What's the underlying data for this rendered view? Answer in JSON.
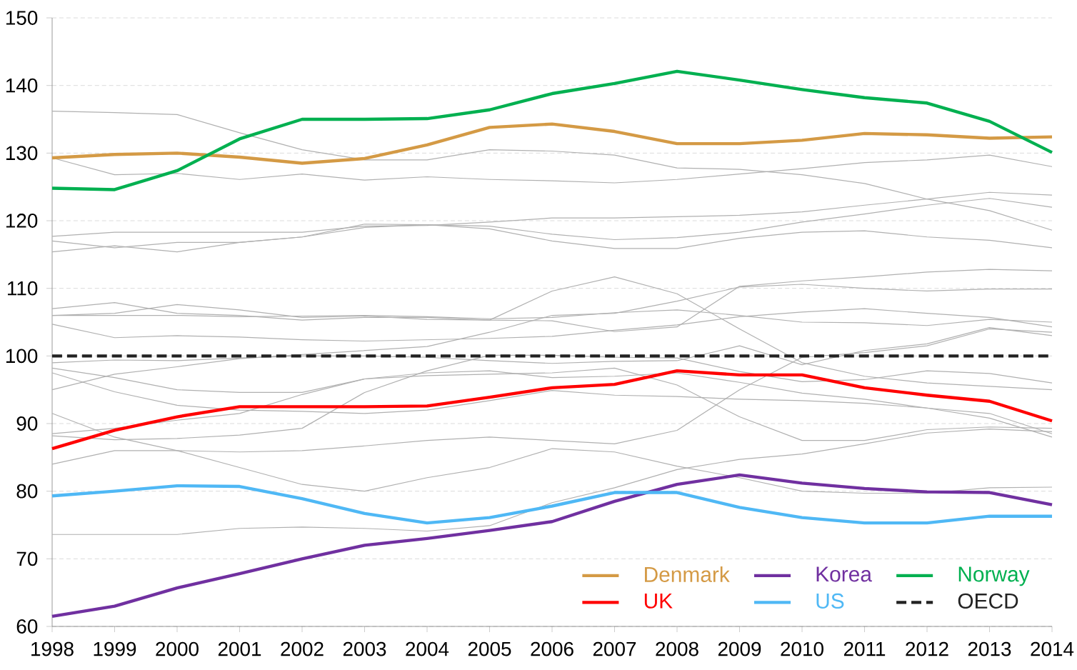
{
  "chart_data": {
    "type": "line",
    "x": [
      1998,
      1999,
      2000,
      2001,
      2002,
      2003,
      2004,
      2005,
      2006,
      2007,
      2008,
      2009,
      2010,
      2011,
      2012,
      2013,
      2014
    ],
    "xlim": [
      1998,
      2014
    ],
    "xticks": [
      1998,
      1999,
      2000,
      2001,
      2002,
      2003,
      2004,
      2005,
      2006,
      2007,
      2008,
      2009,
      2010,
      2011,
      2012,
      2013,
      2014
    ],
    "ylim": [
      60,
      150
    ],
    "yticks": [
      60,
      70,
      80,
      90,
      100,
      110,
      120,
      130,
      140,
      150
    ],
    "grid": "y",
    "legend": "bottom right",
    "marker": "none",
    "series": [
      {
        "color": "#b0b0b0",
        "values": [
          136.2,
          136.0,
          135.7,
          133.0,
          130.5,
          129.0,
          129.0,
          130.5,
          130.3,
          129.7,
          127.8,
          127.6,
          126.8,
          125.5,
          123.2,
          121.5,
          118.6
        ]
      },
      {
        "color": "#b0b0b0",
        "values": [
          129.3,
          126.8,
          127.0,
          126.1,
          126.9,
          126.0,
          126.5,
          126.1,
          125.9,
          125.6,
          126.1,
          126.9,
          127.7,
          128.6,
          129.0,
          129.7,
          128.0
        ]
      },
      {
        "color": "#b0b0b0",
        "values": [
          117.7,
          118.3,
          118.3,
          118.3,
          118.3,
          119.2,
          119.3,
          119.8,
          120.4,
          120.4,
          120.6,
          120.8,
          121.3,
          122.3,
          123.2,
          124.2,
          123.8
        ]
      },
      {
        "color": "#b0b0b0",
        "values": [
          117.0,
          116.0,
          116.8,
          116.8,
          117.6,
          119.5,
          119.4,
          119.2,
          118.0,
          117.2,
          117.5,
          118.3,
          119.8,
          121.0,
          122.3,
          123.3,
          122.0
        ]
      },
      {
        "color": "#b0b0b0",
        "values": [
          115.4,
          116.3,
          115.4,
          116.8,
          117.6,
          119.0,
          119.4,
          118.8,
          117.0,
          115.9,
          115.9,
          117.4,
          118.3,
          118.5,
          117.6,
          117.1,
          116.0
        ]
      },
      {
        "color": "#b0b0b0",
        "values": [
          107.0,
          107.9,
          106.3,
          106.0,
          105.3,
          105.7,
          105.7,
          105.3,
          105.2,
          103.6,
          104.3,
          110.3,
          111.1,
          111.7,
          112.4,
          112.8,
          112.6
        ]
      },
      {
        "color": "#b0b0b0",
        "values": [
          106.0,
          106.3,
          107.6,
          106.8,
          105.7,
          105.9,
          105.4,
          105.3,
          109.6,
          111.7,
          109.2,
          104.0,
          99.0,
          97.0,
          96.0,
          95.5,
          95.0
        ]
      },
      {
        "color": "#b0b0b0",
        "values": [
          106.0,
          106.0,
          106.0,
          105.8,
          105.9,
          106.0,
          105.8,
          105.5,
          105.7,
          106.4,
          106.8,
          106.0,
          105.0,
          104.9,
          104.5,
          105.4,
          105.0
        ]
      },
      {
        "color": "#b0b0b0",
        "values": [
          104.7,
          102.7,
          103.0,
          102.8,
          102.4,
          102.2,
          102.4,
          102.6,
          102.9,
          103.8,
          104.6,
          105.8,
          106.5,
          107.0,
          106.3,
          105.7,
          104.3
        ]
      },
      {
        "color": "#b0b0b0",
        "values": [
          95.0,
          97.3,
          98.4,
          99.6,
          100.2,
          100.8,
          101.4,
          103.5,
          106.0,
          106.3,
          108.1,
          110.2,
          110.6,
          110.0,
          109.6,
          109.9,
          109.9
        ]
      },
      {
        "color": "#b0b0b0",
        "values": [
          99.0,
          99.4,
          99.3,
          99.7,
          100.0,
          100.0,
          99.8,
          99.3,
          98.9,
          99.2,
          99.3,
          101.5,
          98.7,
          100.8,
          101.8,
          104.2,
          103.0
        ]
      },
      {
        "color": "#b0b0b0",
        "values": [
          88.5,
          89.3,
          90.5,
          91.5,
          94.3,
          96.6,
          97.5,
          97.8,
          96.8,
          97.0,
          97.5,
          96.1,
          94.5,
          93.6,
          92.3,
          90.8,
          88.0
        ]
      },
      {
        "color": "#b0b0b0",
        "values": [
          84.0,
          86.0,
          86.0,
          85.8,
          86.0,
          86.7,
          87.5,
          88.0,
          87.5,
          87.0,
          89.0,
          95.0,
          99.8,
          100.5,
          101.5,
          104.0,
          103.5
        ]
      },
      {
        "color": "#b0b0b0",
        "values": [
          91.5,
          88.0,
          86.0,
          83.5,
          81.0,
          80.0,
          82.0,
          83.5,
          86.3,
          85.8,
          83.7,
          82.0,
          80.0,
          79.7,
          79.7,
          80.5,
          80.6
        ]
      },
      {
        "color": "#b0b0b0",
        "values": [
          73.6,
          73.6,
          73.6,
          74.5,
          74.7,
          74.5,
          74.1,
          74.9,
          78.3,
          80.5,
          83.2,
          84.7,
          85.5,
          87.0,
          88.6,
          89.2,
          88.8
        ]
      },
      {
        "color": "#b0b0b0",
        "values": [
          97.5,
          94.7,
          92.7,
          92.0,
          91.8,
          91.5,
          92.0,
          93.4,
          94.9,
          94.2,
          94.0,
          93.6,
          93.4,
          93.0,
          92.3,
          91.5,
          88.5
        ]
      },
      {
        "color": "#b0b0b0",
        "values": [
          98.2,
          96.8,
          95.0,
          94.6,
          94.6,
          96.6,
          97.1,
          97.3,
          97.5,
          98.2,
          95.7,
          91.0,
          87.5,
          87.5,
          89.1,
          89.5,
          89.3
        ]
      },
      {
        "color": "#b0b0b0",
        "values": [
          88.2,
          87.6,
          87.8,
          88.3,
          89.3,
          94.6,
          97.8,
          100.1,
          100.1,
          99.8,
          99.7,
          97.7,
          96.2,
          96.5,
          97.8,
          97.4,
          96.0
        ]
      },
      {
        "name": "Denmark",
        "color": "#d49a45",
        "values": [
          129.3,
          129.8,
          130.0,
          129.4,
          128.5,
          129.2,
          131.2,
          133.8,
          134.3,
          133.2,
          131.4,
          131.4,
          131.9,
          132.9,
          132.7,
          132.2,
          132.4
        ]
      },
      {
        "name": "Korea",
        "color": "#7030a0",
        "values": [
          61.5,
          63.0,
          65.7,
          67.8,
          70.0,
          72.0,
          73.0,
          74.2,
          75.5,
          78.5,
          81.0,
          82.4,
          81.2,
          80.4,
          79.9,
          79.8,
          78.0
        ]
      },
      {
        "name": "Norway",
        "color": "#00b050",
        "values": [
          124.8,
          124.6,
          127.4,
          132.1,
          135.0,
          135.0,
          135.1,
          136.4,
          138.8,
          140.3,
          142.1,
          140.8,
          139.4,
          138.2,
          137.4,
          134.7,
          130.1
        ]
      },
      {
        "name": "UK",
        "color": "#ff0000",
        "values": [
          86.3,
          89.0,
          91.0,
          92.5,
          92.5,
          92.5,
          92.6,
          93.9,
          95.3,
          95.8,
          97.8,
          97.2,
          97.2,
          95.3,
          94.2,
          93.3,
          90.4
        ]
      },
      {
        "name": "US",
        "color": "#4fb8f5",
        "values": [
          79.3,
          80.0,
          80.8,
          80.7,
          78.9,
          76.7,
          75.3,
          76.1,
          77.8,
          79.8,
          79.8,
          77.6,
          76.1,
          75.3,
          75.3,
          76.3,
          76.3
        ]
      },
      {
        "name": "OECD",
        "color": "#222222",
        "line_style": "dashed",
        "values": [
          100,
          100,
          100,
          100,
          100,
          100,
          100,
          100,
          100,
          100,
          100,
          100,
          100,
          100,
          100,
          100,
          100
        ]
      }
    ]
  }
}
